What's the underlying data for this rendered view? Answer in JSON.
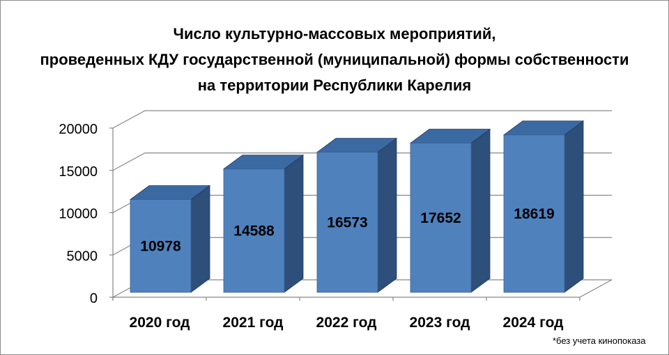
{
  "chart_data": {
    "type": "bar",
    "title_lines": [
      "Число культурно-массовых мероприятий,",
      "проведенных КДУ государственной (муниципальной) формы собственности",
      "на территории Республики Карелия"
    ],
    "categories": [
      "2020 год",
      "2021 год",
      "2022 год",
      "2023 год",
      "2024 год"
    ],
    "values": [
      10978,
      14588,
      16573,
      17652,
      18619
    ],
    "ylim": [
      0,
      20000
    ],
    "yticks": [
      0,
      5000,
      10000,
      15000,
      20000
    ],
    "grid": true,
    "style": "3d-column",
    "colors": {
      "bar_front": "#4f81bd",
      "bar_side": "#2e4f7a",
      "bar_top": "#3b6aa3"
    }
  },
  "footnote": "*без учета кинопоказа"
}
